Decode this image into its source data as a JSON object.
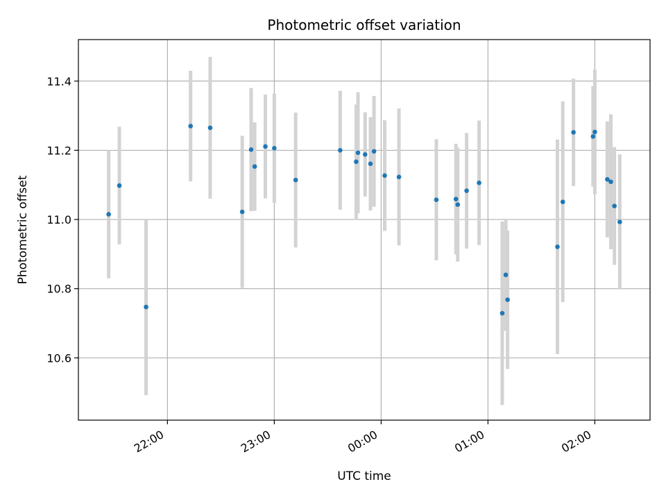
{
  "chart_data": {
    "type": "scatter",
    "title": "Photometric offset variation",
    "xlabel": "UTC time",
    "ylabel": "Photometric offset",
    "x_axis_type": "time",
    "xlim": [
      "21:10",
      "02:31"
    ],
    "ylim": [
      10.42,
      11.52
    ],
    "x_ticks": [
      "22:00",
      "23:00",
      "00:00",
      "01:00",
      "02:00"
    ],
    "y_ticks": [
      10.6,
      10.8,
      11.0,
      11.2,
      11.4
    ],
    "y_tick_labels": [
      "10.6",
      "10.8",
      "11.0",
      "11.2",
      "11.4"
    ],
    "grid": true,
    "marker_color": "#1f77b4",
    "errorbar_color": "#d3d3d3",
    "points": [
      {
        "x": "21:27",
        "y": 11.015,
        "yerr": 0.185
      },
      {
        "x": "21:33",
        "y": 11.098,
        "yerr": 0.17
      },
      {
        "x": "21:48",
        "y": 10.747,
        "yerr": 0.255
      },
      {
        "x": "22:13",
        "y": 11.27,
        "yerr": 0.16
      },
      {
        "x": "22:24",
        "y": 11.265,
        "yerr": 0.205
      },
      {
        "x": "22:42",
        "y": 11.022,
        "yerr": 0.22
      },
      {
        "x": "22:47",
        "y": 11.202,
        "yerr": 0.178
      },
      {
        "x": "22:49",
        "y": 11.153,
        "yerr": 0.128
      },
      {
        "x": "22:55",
        "y": 11.211,
        "yerr": 0.15
      },
      {
        "x": "23:00",
        "y": 11.206,
        "yerr": 0.158
      },
      {
        "x": "23:12",
        "y": 11.114,
        "yerr": 0.195
      },
      {
        "x": "23:37",
        "y": 11.2,
        "yerr": 0.172
      },
      {
        "x": "23:46",
        "y": 11.167,
        "yerr": 0.165
      },
      {
        "x": "23:47",
        "y": 11.193,
        "yerr": 0.175
      },
      {
        "x": "23:51",
        "y": 11.188,
        "yerr": 0.122
      },
      {
        "x": "23:54",
        "y": 11.161,
        "yerr": 0.135
      },
      {
        "x": "23:56",
        "y": 11.197,
        "yerr": 0.16
      },
      {
        "x": "00:02",
        "y": 11.127,
        "yerr": 0.16
      },
      {
        "x": "00:10",
        "y": 11.123,
        "yerr": 0.198
      },
      {
        "x": "00:31",
        "y": 11.057,
        "yerr": 0.175
      },
      {
        "x": "00:42",
        "y": 11.059,
        "yerr": 0.16
      },
      {
        "x": "00:43",
        "y": 11.043,
        "yerr": 0.165
      },
      {
        "x": "00:48",
        "y": 11.083,
        "yerr": 0.167
      },
      {
        "x": "00:55",
        "y": 11.106,
        "yerr": 0.18
      },
      {
        "x": "01:08",
        "y": 10.729,
        "yerr": 0.265
      },
      {
        "x": "01:10",
        "y": 10.84,
        "yerr": 0.162
      },
      {
        "x": "01:11",
        "y": 10.768,
        "yerr": 0.2
      },
      {
        "x": "01:39",
        "y": 10.921,
        "yerr": 0.31
      },
      {
        "x": "01:42",
        "y": 11.051,
        "yerr": 0.29
      },
      {
        "x": "01:48",
        "y": 11.252,
        "yerr": 0.155
      },
      {
        "x": "01:59",
        "y": 11.24,
        "yerr": 0.145
      },
      {
        "x": "02:00",
        "y": 11.253,
        "yerr": 0.18
      },
      {
        "x": "02:07",
        "y": 11.116,
        "yerr": 0.168
      },
      {
        "x": "02:09",
        "y": 11.109,
        "yerr": 0.195
      },
      {
        "x": "02:11",
        "y": 11.039,
        "yerr": 0.17
      },
      {
        "x": "02:14",
        "y": 10.993,
        "yerr": 0.195
      }
    ]
  }
}
